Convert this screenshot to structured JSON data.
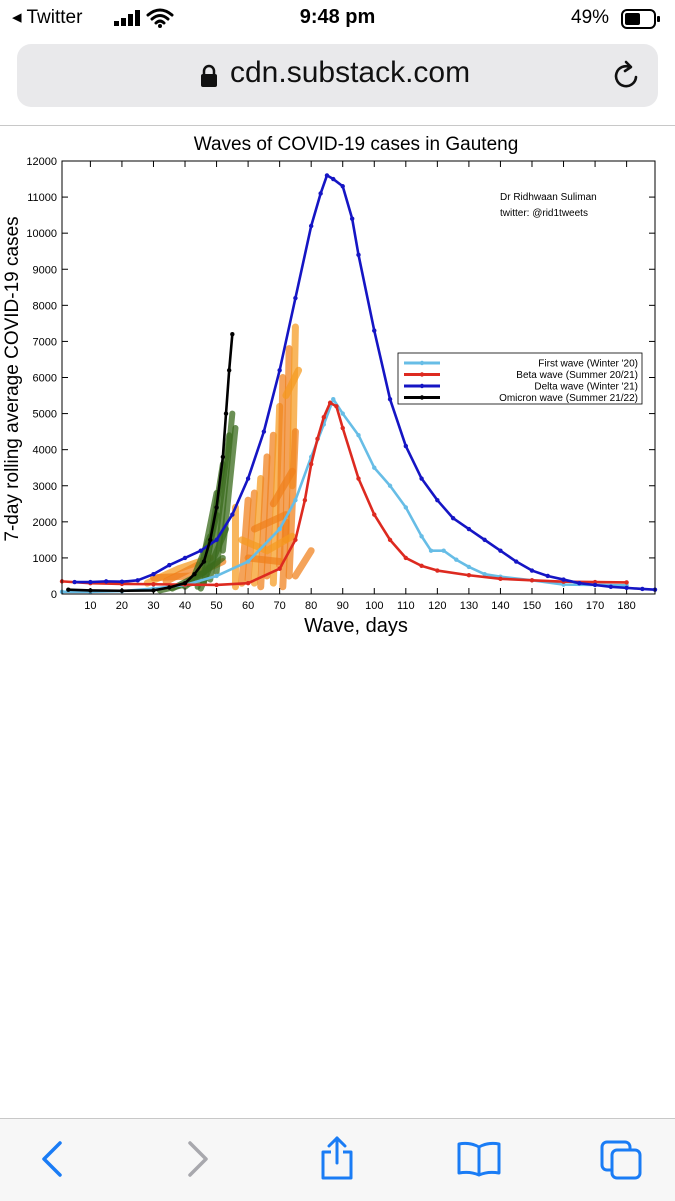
{
  "status_bar": {
    "back_app": "◂ Twitter",
    "time": "9:48 pm",
    "battery": "49%"
  },
  "browser": {
    "url": "cdn.substack.com"
  },
  "icons": [
    "back-chevron-icon",
    "cellular-signal-icon",
    "wifi-icon",
    "battery-icon",
    "lock-icon",
    "reload-icon",
    "nav-back-icon",
    "nav-forward-icon",
    "share-icon",
    "bookmarks-icon",
    "tabs-icon"
  ],
  "colors": {
    "accent": "#1a7cf5",
    "first": "#67bde6",
    "beta": "#dd2a20",
    "delta": "#1515c4",
    "omicron": "#000000"
  },
  "chart_data": {
    "type": "line",
    "title": "Waves of COVID-19 cases in Gauteng",
    "xlabel": "Wave, days",
    "ylabel": "7-day rolling average COVID-19 cases",
    "xlim": [
      1,
      189
    ],
    "ylim": [
      0,
      12000
    ],
    "xticks": [
      10,
      20,
      30,
      40,
      50,
      60,
      70,
      80,
      90,
      100,
      110,
      120,
      130,
      140,
      150,
      160,
      170,
      180
    ],
    "yticks": [
      0,
      1000,
      2000,
      3000,
      4000,
      5000,
      6000,
      7000,
      8000,
      9000,
      10000,
      11000,
      12000
    ],
    "annotation": [
      "Dr Ridhwaan Suliman",
      "twitter: @rid1tweets"
    ],
    "legend_position": "right-middle",
    "series": [
      {
        "name": "First wave (Winter '20)",
        "color": "#67bde6",
        "x": [
          1,
          10,
          20,
          30,
          40,
          50,
          60,
          70,
          75,
          80,
          84,
          87,
          90,
          95,
          100,
          105,
          110,
          115,
          118,
          122,
          126,
          130,
          135,
          140,
          150,
          160,
          170,
          180
        ],
        "y": [
          60,
          60,
          80,
          150,
          250,
          500,
          900,
          1800,
          2600,
          3800,
          4700,
          5400,
          5000,
          4400,
          3500,
          3000,
          2400,
          1600,
          1200,
          1200,
          950,
          750,
          550,
          480,
          380,
          260,
          250,
          240
        ]
      },
      {
        "name": "Beta wave (Summer 20/21)",
        "color": "#dd2a20",
        "x": [
          1,
          10,
          20,
          30,
          40,
          50,
          60,
          70,
          75,
          78,
          80,
          82,
          84,
          86,
          88,
          90,
          95,
          100,
          105,
          110,
          115,
          120,
          130,
          140,
          150,
          160,
          170,
          180
        ],
        "y": [
          350,
          300,
          280,
          270,
          260,
          250,
          300,
          700,
          1500,
          2600,
          3600,
          4300,
          4900,
          5300,
          5200,
          4600,
          3200,
          2200,
          1500,
          1000,
          780,
          650,
          520,
          420,
          380,
          340,
          330,
          320
        ]
      },
      {
        "name": "Delta wave (Winter '21)",
        "color": "#1515c4",
        "x": [
          5,
          10,
          15,
          20,
          25,
          30,
          35,
          40,
          45,
          50,
          55,
          60,
          65,
          70,
          75,
          80,
          83,
          85,
          87,
          90,
          93,
          95,
          100,
          105,
          110,
          115,
          120,
          125,
          130,
          135,
          140,
          145,
          150,
          155,
          160,
          165,
          170,
          175,
          180,
          185,
          189
        ],
        "y": [
          330,
          330,
          350,
          340,
          380,
          550,
          800,
          1000,
          1200,
          1500,
          2200,
          3200,
          4500,
          6200,
          8200,
          10200,
          11100,
          11600,
          11500,
          11300,
          10400,
          9400,
          7300,
          5400,
          4100,
          3200,
          2600,
          2100,
          1800,
          1500,
          1200,
          900,
          650,
          500,
          400,
          300,
          250,
          200,
          170,
          140,
          120
        ]
      },
      {
        "name": "Omicron wave (Summer 21/22)",
        "color": "#000000",
        "x": [
          3,
          10,
          20,
          30,
          35,
          40,
          43,
          46,
          48,
          50,
          52,
          53,
          54,
          55
        ],
        "y": [
          120,
          100,
          90,
          100,
          180,
          300,
          550,
          900,
          1500,
          2400,
          3800,
          5000,
          6200,
          7200
        ]
      }
    ],
    "handwritten_overlays": [
      "orange hand-drawn projection marks (days 28-78)",
      "dark green hand-drawn projection marks (days 32-56)"
    ]
  }
}
